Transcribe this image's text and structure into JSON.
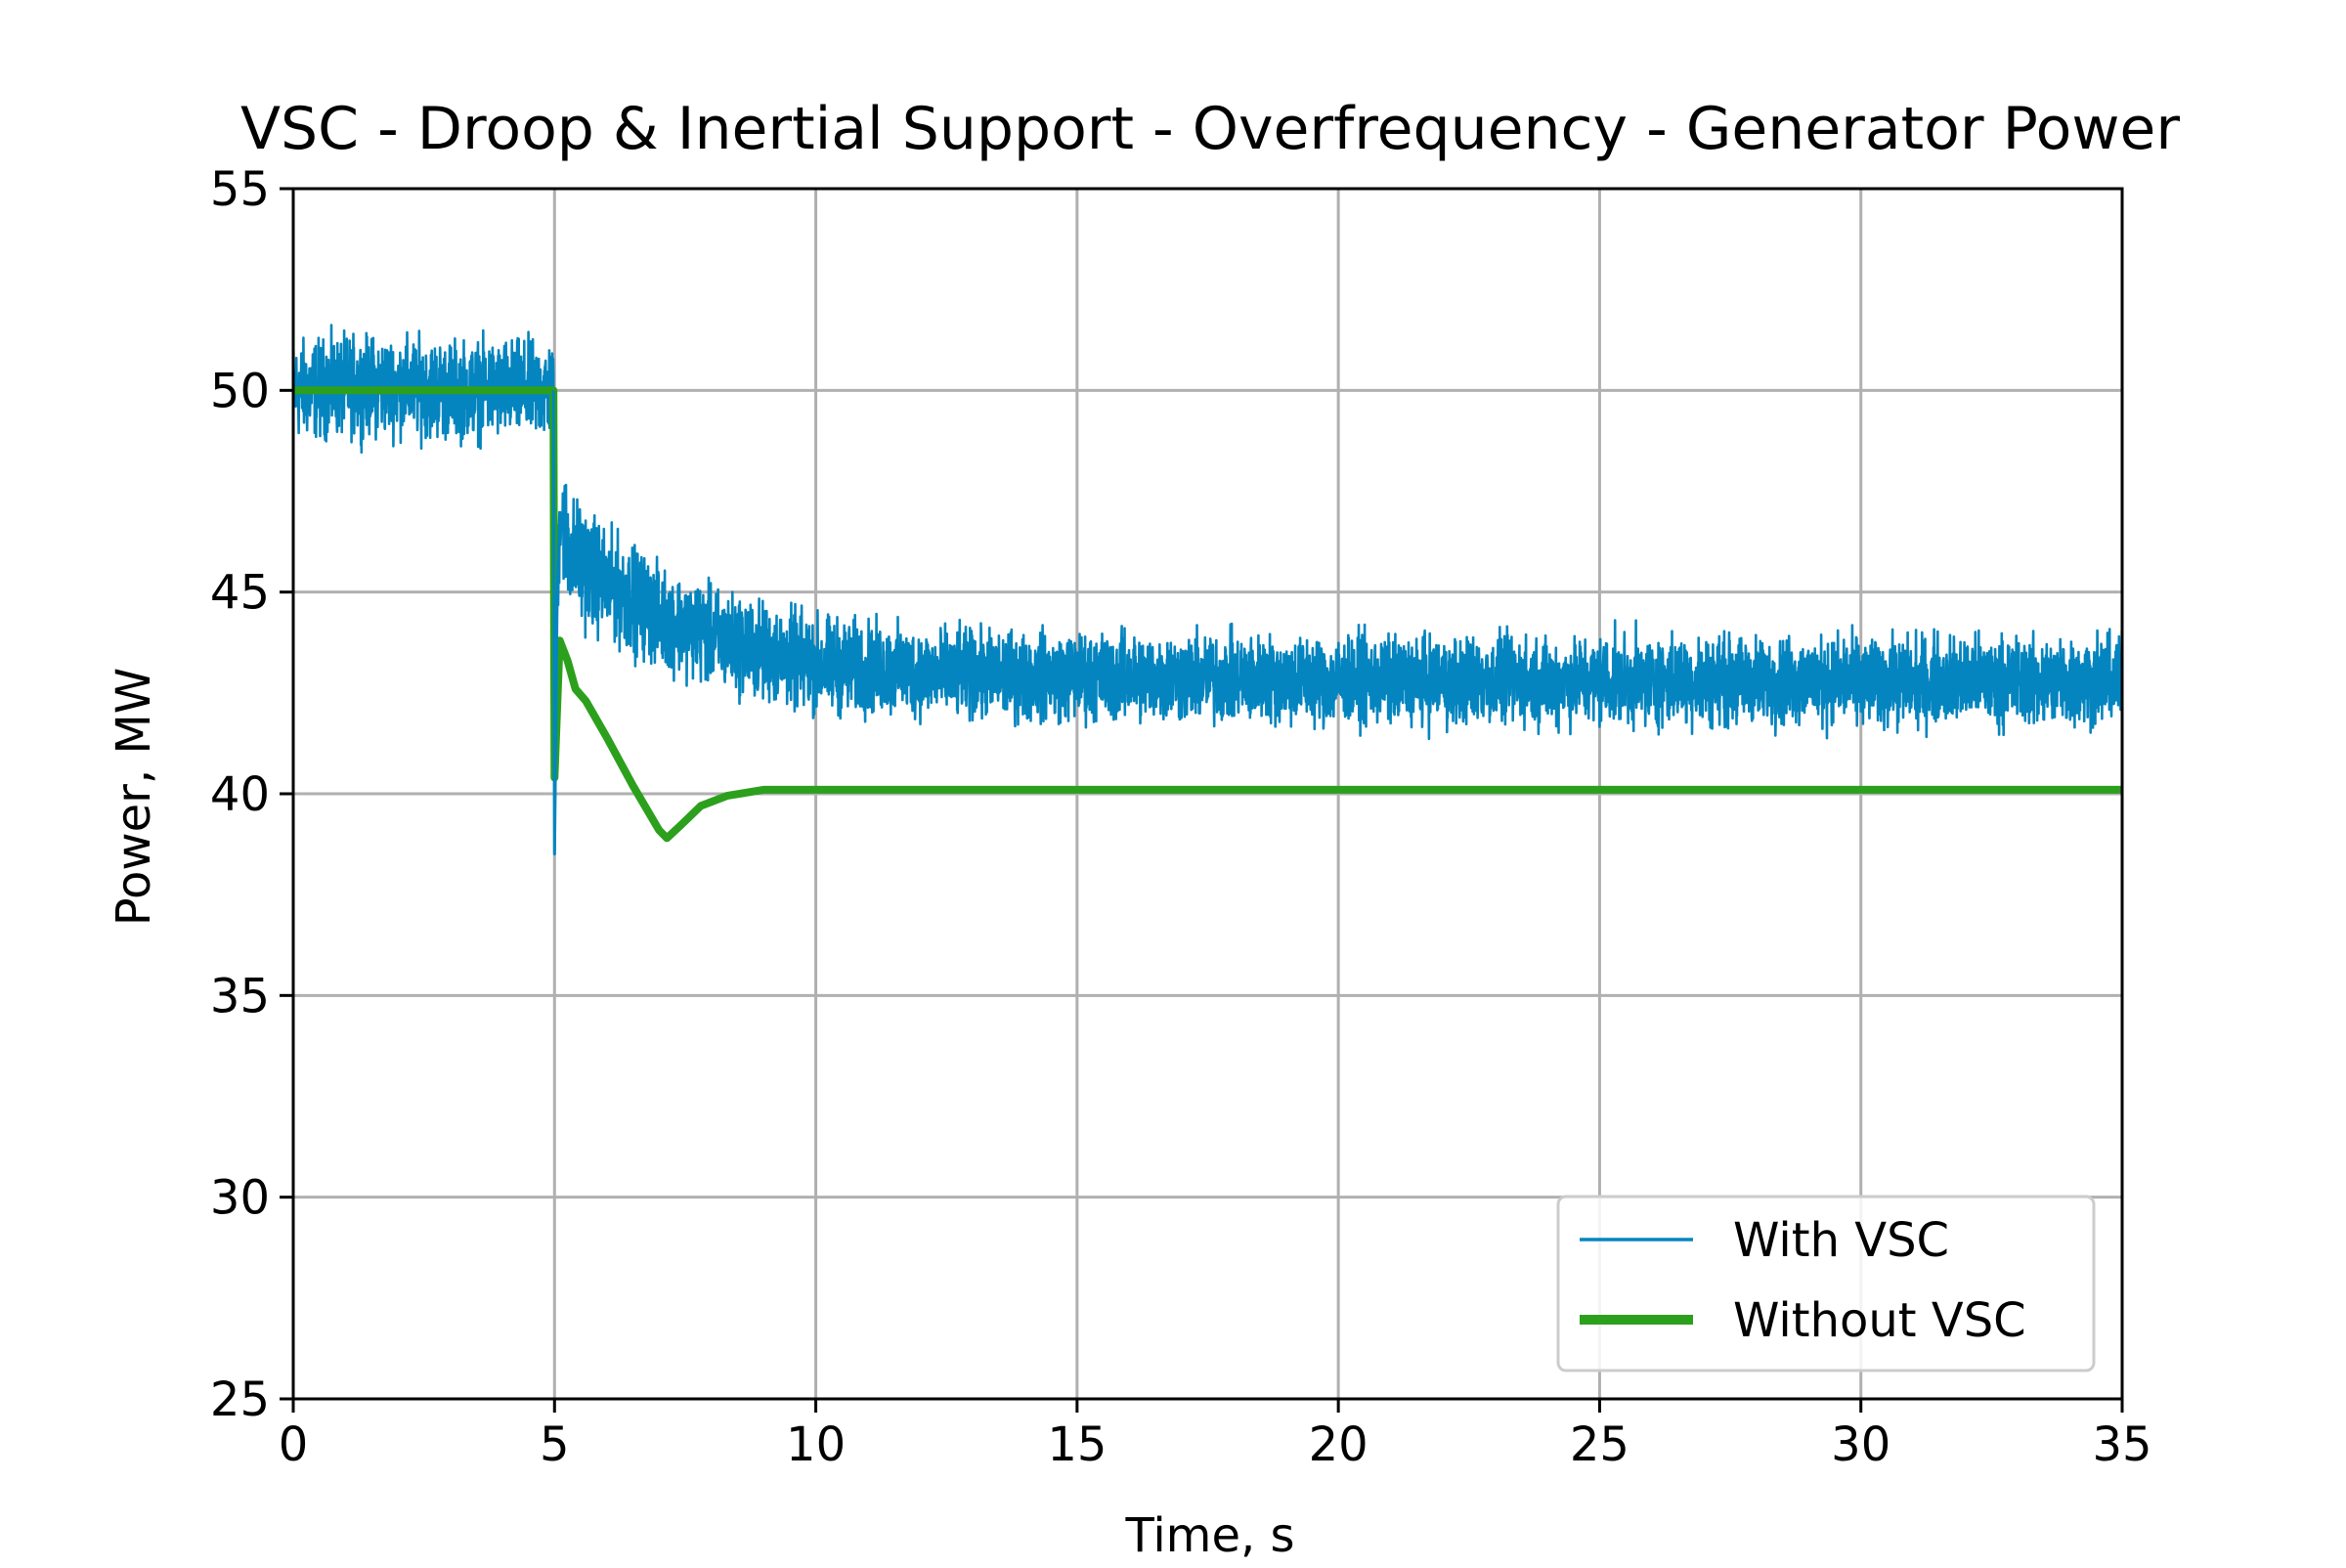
{
  "chart_data": {
    "type": "line",
    "title": "VSC - Droop & Inertial Support - Overfrequency - Generator Power",
    "xlabel": "Time, s",
    "ylabel": "Power, MW",
    "xlim": [
      0,
      35
    ],
    "ylim": [
      25,
      55
    ],
    "xticks": [
      0,
      5,
      10,
      15,
      20,
      25,
      30,
      35
    ],
    "yticks": [
      25,
      30,
      35,
      40,
      45,
      50,
      55
    ],
    "grid": true,
    "legend_position": "bottom-right",
    "series": [
      {
        "name": "With VSC",
        "color": "#0485bf",
        "noisy": true,
        "x": [
          0,
          1,
          2,
          3,
          4,
          4.98,
          5.0,
          5.05,
          5.1,
          5.3,
          5.6,
          6,
          6.5,
          7,
          8,
          9,
          10,
          12,
          14,
          16,
          20,
          25,
          30,
          35
        ],
        "y": [
          50.0,
          50.1,
          50.1,
          50.0,
          50.0,
          50.0,
          38.5,
          45.0,
          47.0,
          46.0,
          45.6,
          45.2,
          44.8,
          44.4,
          43.9,
          43.5,
          43.2,
          43.0,
          42.9,
          42.9,
          42.8,
          42.8,
          42.8,
          42.8
        ],
        "noise_amplitude": [
          1.0,
          1.0,
          1.0,
          1.0,
          1.0,
          1.0,
          0.0,
          1.2,
          1.2,
          1.2,
          1.2,
          1.1,
          1.1,
          1.0,
          1.0,
          1.0,
          1.0,
          0.9,
          0.9,
          0.9,
          0.9,
          0.9,
          0.9,
          0.9
        ]
      },
      {
        "name": "Without VSC",
        "color": "#2ca01c",
        "noisy": false,
        "x": [
          0,
          4.98,
          5.0,
          5.1,
          5.25,
          5.4,
          5.6,
          6.0,
          6.5,
          7.0,
          7.15,
          7.4,
          7.8,
          8.3,
          9.0,
          10,
          15,
          20,
          25,
          30,
          35
        ],
        "y": [
          50.0,
          50.0,
          40.4,
          43.8,
          43.3,
          42.6,
          42.3,
          41.4,
          40.2,
          39.1,
          38.9,
          39.2,
          39.7,
          39.95,
          40.1,
          40.1,
          40.1,
          40.1,
          40.1,
          40.1,
          40.1
        ]
      }
    ]
  }
}
